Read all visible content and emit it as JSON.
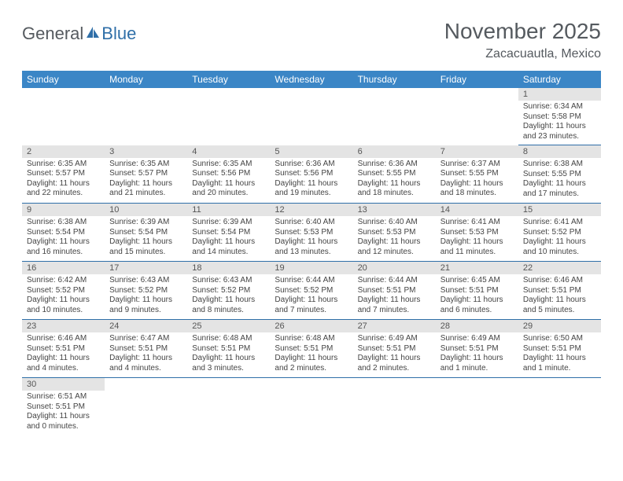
{
  "brand": {
    "part1": "General",
    "part2": "Blue"
  },
  "title": "November 2025",
  "location": "Zacacuautla, Mexico",
  "colors": {
    "header_bar": "#3b86c6",
    "grid_line": "#2f6fa8",
    "dayhead_bg": "#e4e4e4",
    "title_text": "#555a5f"
  },
  "weekdays": [
    "Sunday",
    "Monday",
    "Tuesday",
    "Wednesday",
    "Thursday",
    "Friday",
    "Saturday"
  ],
  "weeks": [
    [
      null,
      null,
      null,
      null,
      null,
      null,
      {
        "d": "1",
        "sr": "6:34 AM",
        "ss": "5:58 PM",
        "dl": "11 hours and 23 minutes."
      }
    ],
    [
      {
        "d": "2",
        "sr": "6:35 AM",
        "ss": "5:57 PM",
        "dl": "11 hours and 22 minutes."
      },
      {
        "d": "3",
        "sr": "6:35 AM",
        "ss": "5:57 PM",
        "dl": "11 hours and 21 minutes."
      },
      {
        "d": "4",
        "sr": "6:35 AM",
        "ss": "5:56 PM",
        "dl": "11 hours and 20 minutes."
      },
      {
        "d": "5",
        "sr": "6:36 AM",
        "ss": "5:56 PM",
        "dl": "11 hours and 19 minutes."
      },
      {
        "d": "6",
        "sr": "6:36 AM",
        "ss": "5:55 PM",
        "dl": "11 hours and 18 minutes."
      },
      {
        "d": "7",
        "sr": "6:37 AM",
        "ss": "5:55 PM",
        "dl": "11 hours and 18 minutes."
      },
      {
        "d": "8",
        "sr": "6:38 AM",
        "ss": "5:55 PM",
        "dl": "11 hours and 17 minutes."
      }
    ],
    [
      {
        "d": "9",
        "sr": "6:38 AM",
        "ss": "5:54 PM",
        "dl": "11 hours and 16 minutes."
      },
      {
        "d": "10",
        "sr": "6:39 AM",
        "ss": "5:54 PM",
        "dl": "11 hours and 15 minutes."
      },
      {
        "d": "11",
        "sr": "6:39 AM",
        "ss": "5:54 PM",
        "dl": "11 hours and 14 minutes."
      },
      {
        "d": "12",
        "sr": "6:40 AM",
        "ss": "5:53 PM",
        "dl": "11 hours and 13 minutes."
      },
      {
        "d": "13",
        "sr": "6:40 AM",
        "ss": "5:53 PM",
        "dl": "11 hours and 12 minutes."
      },
      {
        "d": "14",
        "sr": "6:41 AM",
        "ss": "5:53 PM",
        "dl": "11 hours and 11 minutes."
      },
      {
        "d": "15",
        "sr": "6:41 AM",
        "ss": "5:52 PM",
        "dl": "11 hours and 10 minutes."
      }
    ],
    [
      {
        "d": "16",
        "sr": "6:42 AM",
        "ss": "5:52 PM",
        "dl": "11 hours and 10 minutes."
      },
      {
        "d": "17",
        "sr": "6:43 AM",
        "ss": "5:52 PM",
        "dl": "11 hours and 9 minutes."
      },
      {
        "d": "18",
        "sr": "6:43 AM",
        "ss": "5:52 PM",
        "dl": "11 hours and 8 minutes."
      },
      {
        "d": "19",
        "sr": "6:44 AM",
        "ss": "5:52 PM",
        "dl": "11 hours and 7 minutes."
      },
      {
        "d": "20",
        "sr": "6:44 AM",
        "ss": "5:51 PM",
        "dl": "11 hours and 7 minutes."
      },
      {
        "d": "21",
        "sr": "6:45 AM",
        "ss": "5:51 PM",
        "dl": "11 hours and 6 minutes."
      },
      {
        "d": "22",
        "sr": "6:46 AM",
        "ss": "5:51 PM",
        "dl": "11 hours and 5 minutes."
      }
    ],
    [
      {
        "d": "23",
        "sr": "6:46 AM",
        "ss": "5:51 PM",
        "dl": "11 hours and 4 minutes."
      },
      {
        "d": "24",
        "sr": "6:47 AM",
        "ss": "5:51 PM",
        "dl": "11 hours and 4 minutes."
      },
      {
        "d": "25",
        "sr": "6:48 AM",
        "ss": "5:51 PM",
        "dl": "11 hours and 3 minutes."
      },
      {
        "d": "26",
        "sr": "6:48 AM",
        "ss": "5:51 PM",
        "dl": "11 hours and 2 minutes."
      },
      {
        "d": "27",
        "sr": "6:49 AM",
        "ss": "5:51 PM",
        "dl": "11 hours and 2 minutes."
      },
      {
        "d": "28",
        "sr": "6:49 AM",
        "ss": "5:51 PM",
        "dl": "11 hours and 1 minute."
      },
      {
        "d": "29",
        "sr": "6:50 AM",
        "ss": "5:51 PM",
        "dl": "11 hours and 1 minute."
      }
    ],
    [
      {
        "d": "30",
        "sr": "6:51 AM",
        "ss": "5:51 PM",
        "dl": "11 hours and 0 minutes."
      },
      null,
      null,
      null,
      null,
      null,
      null
    ]
  ],
  "labels": {
    "sunrise": "Sunrise:",
    "sunset": "Sunset:",
    "daylight": "Daylight:"
  }
}
